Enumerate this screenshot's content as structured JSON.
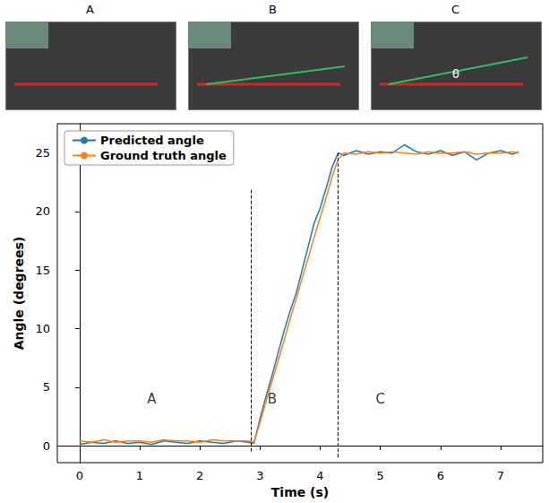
{
  "photos": {
    "panels": [
      {
        "label": "A"
      },
      {
        "label": "B"
      },
      {
        "label": "C",
        "symbol": "θ"
      }
    ]
  },
  "chart_data": {
    "type": "line",
    "x_label": "Time (s)",
    "y_label": "Angle (degrees)",
    "x": [
      0,
      0.2,
      0.4,
      0.6,
      0.8,
      1.0,
      1.2,
      1.4,
      1.6,
      1.8,
      2.0,
      2.2,
      2.4,
      2.6,
      2.8,
      2.9,
      3.0,
      3.1,
      3.2,
      3.3,
      3.4,
      3.5,
      3.6,
      3.7,
      3.8,
      3.9,
      4.0,
      4.1,
      4.2,
      4.3,
      4.4,
      4.6,
      4.8,
      5.0,
      5.2,
      5.4,
      5.6,
      5.8,
      6.0,
      6.2,
      6.4,
      6.6,
      6.8,
      7.0,
      7.2,
      7.3
    ],
    "series": [
      {
        "name": "Predicted angle",
        "color": "#1f77b4",
        "values": [
          0.1,
          0.3,
          0.2,
          0.4,
          0.2,
          0.3,
          0.1,
          0.4,
          0.3,
          0.2,
          0.4,
          0.3,
          0.2,
          0.4,
          0.3,
          0.2,
          2.3,
          4.2,
          6.0,
          7.9,
          9.8,
          11.5,
          13.0,
          15.0,
          17.0,
          19.0,
          20.3,
          22.0,
          23.8,
          25.0,
          24.8,
          25.2,
          24.9,
          25.1,
          25.0,
          25.7,
          25.1,
          24.9,
          25.2,
          24.8,
          25.1,
          24.4,
          25.0,
          25.2,
          24.9,
          25.1
        ]
      },
      {
        "name": "Ground truth angle",
        "color": "#ff7f0e",
        "values": [
          0.4,
          0.3,
          0.5,
          0.3,
          0.4,
          0.4,
          0.3,
          0.5,
          0.4,
          0.4,
          0.3,
          0.5,
          0.4,
          0.4,
          0.4,
          0.3,
          2.0,
          3.8,
          5.5,
          7.2,
          9.0,
          10.8,
          12.5,
          14.3,
          16.0,
          17.8,
          19.5,
          21.2,
          23.0,
          24.5,
          25.0,
          24.9,
          25.1,
          25.0,
          25.1,
          25.0,
          24.9,
          25.1,
          25.0,
          25.0,
          25.1,
          24.9,
          25.0,
          25.0,
          25.1,
          25.0
        ]
      }
    ],
    "xlim": [
      -0.37,
      7.7
    ],
    "ylim": [
      -1.45,
      27.5
    ],
    "xticks": [
      0,
      1,
      2,
      3,
      4,
      5,
      6,
      7
    ],
    "yticks": [
      0,
      5,
      10,
      15,
      20,
      25
    ],
    "vlines": [
      {
        "x": 2.85,
        "y": [
          -0.5,
          22
        ]
      },
      {
        "x": 4.3,
        "y": [
          -1,
          25
        ]
      }
    ],
    "annotations": [
      {
        "text": "A",
        "x": 1.2,
        "y": 4
      },
      {
        "text": "B",
        "x": 3.2,
        "y": 4
      },
      {
        "text": "C",
        "x": 5.0,
        "y": 4
      }
    ],
    "legend": "upper left",
    "grid": false
  }
}
